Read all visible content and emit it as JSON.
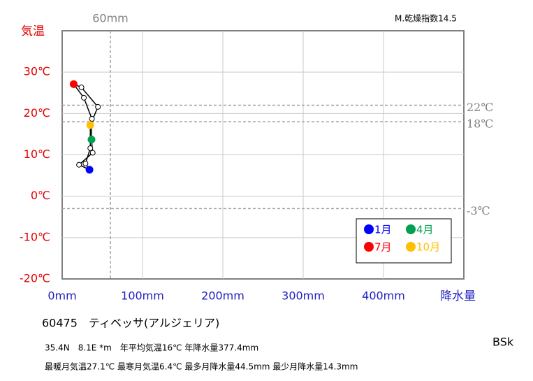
{
  "chart_data": {
    "type": "climograph",
    "title": "60475　ティベッサ(アルジェリア)",
    "info_lines": [
      "35.4N　8.1E *m　年平均気温16℃ 年降水量377.4mm",
      "最暖月気温27.1℃ 最寒月気温6.4℃ 最多月降水量44.5mm 最少月降水量14.3mm"
    ],
    "dryness_index": "M.乾燥指数14.5",
    "climate_class": "BSk",
    "y_label": "気温",
    "x_label": "降水量",
    "x": [
      34,
      21,
      38,
      36.5,
      37,
      27,
      14.3,
      24,
      44.5,
      35,
      35,
      29
    ],
    "values": [
      6.4,
      7.6,
      10.5,
      13.7,
      18.7,
      23.8,
      27.1,
      26.3,
      21.6,
      17.2,
      11.6,
      7.9
    ],
    "point_colors": [
      "#0000ff",
      "#ffffff",
      "#ffffff",
      "#00a050",
      "#ffffff",
      "#ffffff",
      "#ff0000",
      "#ffffff",
      "#ffffff",
      "#ffc000",
      "#ffffff",
      "#ffffff"
    ],
    "legend": [
      {
        "name": "1月",
        "color": "#0000ff"
      },
      {
        "name": "4月",
        "color": "#00a050"
      },
      {
        "name": "7月",
        "color": "#ff0000"
      },
      {
        "name": "10月",
        "color": "#ffc000"
      }
    ],
    "xlim": [
      0,
      500
    ],
    "ylim": [
      -20,
      40
    ],
    "xticks": [
      {
        "value": 0,
        "label": "0mm"
      },
      {
        "value": 100,
        "label": "100mm"
      },
      {
        "value": 200,
        "label": "200mm"
      },
      {
        "value": 300,
        "label": "300mm"
      },
      {
        "value": 400,
        "label": "400mm"
      }
    ],
    "yticks": [
      {
        "value": -20,
        "label": "-20℃"
      },
      {
        "value": -10,
        "label": "-10℃"
      },
      {
        "value": 0,
        "label": "0℃"
      },
      {
        "value": 10,
        "label": "10℃"
      },
      {
        "value": 20,
        "label": "20℃"
      },
      {
        "value": 30,
        "label": "30℃"
      }
    ],
    "ref_x": [
      {
        "value": 60,
        "label": "60mm"
      }
    ],
    "ref_y": [
      {
        "value": 22,
        "label": "22℃"
      },
      {
        "value": 18,
        "label": "18℃"
      },
      {
        "value": -3,
        "label": "-3℃"
      }
    ],
    "grid": true
  }
}
